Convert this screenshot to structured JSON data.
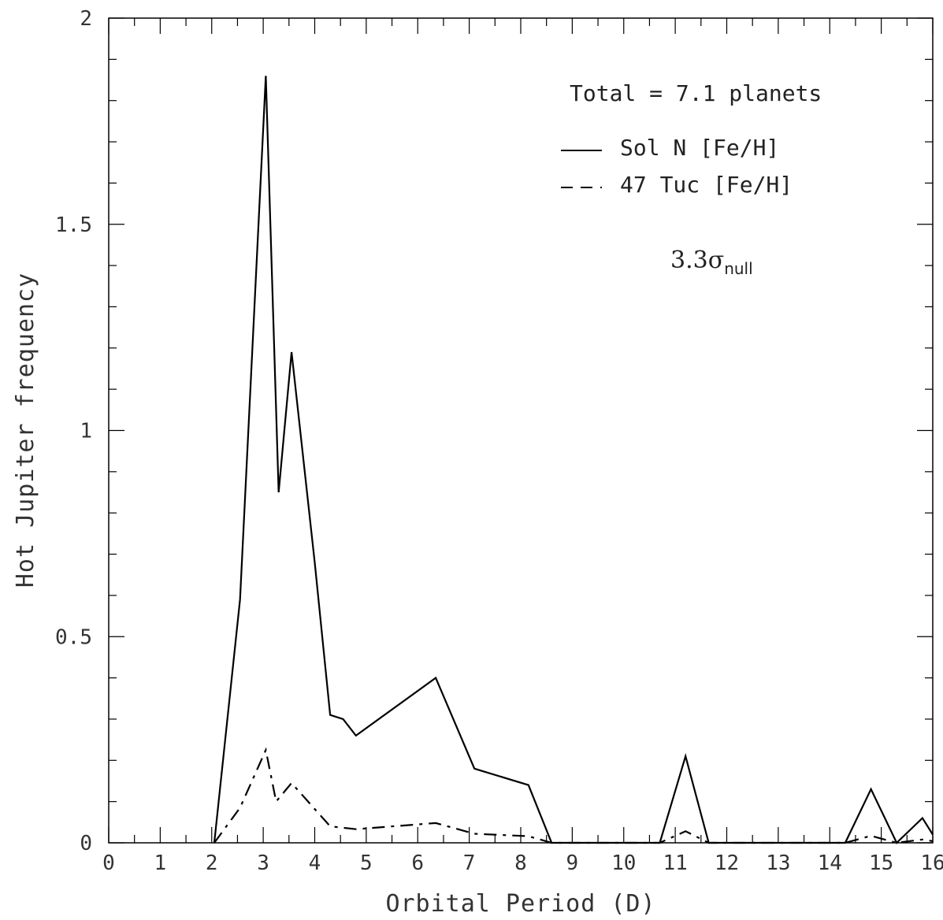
{
  "chart_data": {
    "type": "line",
    "title": "",
    "xlabel": "Orbital Period (D)",
    "ylabel": "Hot Jupiter frequency",
    "xlim": [
      0,
      16
    ],
    "ylim": [
      0,
      2
    ],
    "xticks": [
      "0",
      "1",
      "2",
      "3",
      "4",
      "5",
      "6",
      "7",
      "8",
      "9",
      "10",
      "11",
      "12",
      "13",
      "14",
      "15",
      "16"
    ],
    "yticks": [
      {
        "value": 0,
        "label": "0"
      },
      {
        "value": 0.5,
        "label": "0.5"
      },
      {
        "value": 1,
        "label": "1"
      },
      {
        "value": 1.5,
        "label": "1.5"
      },
      {
        "value": 2,
        "label": "2"
      }
    ],
    "grid": false,
    "annotations": {
      "total": "Total = 7.1 planets",
      "sigma_main": "3.3σ",
      "sigma_sub": "null"
    },
    "series": [
      {
        "name": "Sol N [Fe/H]",
        "style": "solid",
        "color": "#000000",
        "points": [
          [
            2.05,
            0.0
          ],
          [
            2.55,
            0.59
          ],
          [
            3.05,
            1.86
          ],
          [
            3.3,
            0.85
          ],
          [
            3.55,
            1.19
          ],
          [
            4.0,
            0.68
          ],
          [
            4.3,
            0.31
          ],
          [
            4.55,
            0.3
          ],
          [
            4.8,
            0.26
          ],
          [
            6.35,
            0.4
          ],
          [
            7.1,
            0.18
          ],
          [
            8.15,
            0.14
          ],
          [
            8.6,
            0.0
          ],
          [
            10.7,
            0.0
          ],
          [
            11.2,
            0.21
          ],
          [
            11.65,
            0.0
          ],
          [
            14.3,
            0.0
          ],
          [
            14.8,
            0.13
          ],
          [
            15.3,
            0.0
          ],
          [
            15.8,
            0.06
          ],
          [
            16.0,
            0.02
          ]
        ]
      },
      {
        "name": "47 Tuc [Fe/H]",
        "style": "dashed",
        "color": "#000000",
        "points": [
          [
            2.05,
            0.0
          ],
          [
            2.55,
            0.085
          ],
          [
            3.05,
            0.225
          ],
          [
            3.25,
            0.1
          ],
          [
            3.55,
            0.145
          ],
          [
            4.3,
            0.04
          ],
          [
            4.8,
            0.033
          ],
          [
            6.35,
            0.048
          ],
          [
            7.1,
            0.022
          ],
          [
            8.15,
            0.016
          ],
          [
            8.6,
            0.0
          ],
          [
            10.7,
            0.0
          ],
          [
            11.2,
            0.028
          ],
          [
            11.65,
            0.0
          ],
          [
            14.3,
            0.0
          ],
          [
            14.8,
            0.017
          ],
          [
            15.3,
            0.0
          ],
          [
            15.8,
            0.008
          ],
          [
            16.0,
            0.004
          ]
        ]
      }
    ]
  }
}
